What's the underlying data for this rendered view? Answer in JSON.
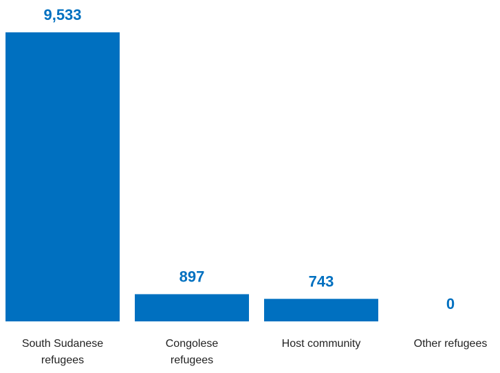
{
  "chart_data": {
    "type": "bar",
    "categories": [
      "South Sudanese refugees",
      "Congolese refugees",
      "Host community",
      "Other refugees"
    ],
    "values": [
      9533,
      897,
      743,
      0
    ],
    "value_labels": [
      "9,533",
      "897",
      "743",
      "0"
    ],
    "color": "#0070c0"
  }
}
